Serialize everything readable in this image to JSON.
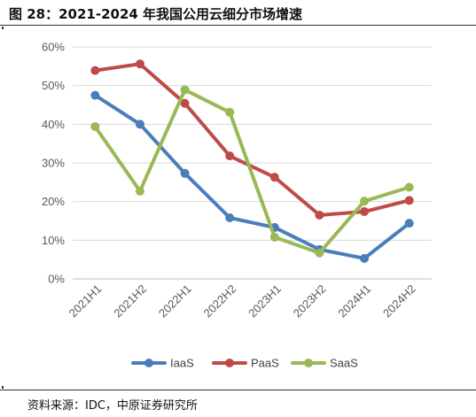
{
  "figure": {
    "title": "图 28：2021-2024 年我国公用云细分市场增速",
    "source": "资料来源：IDC，中原证券研究所"
  },
  "chart_data": {
    "type": "line",
    "title": "",
    "xlabel": "",
    "ylabel": "",
    "categories": [
      "2021H1",
      "2021H2",
      "2022H1",
      "2022H2",
      "2023H1",
      "2023H2",
      "2024H1",
      "2024H2"
    ],
    "ylim": [
      0,
      60
    ],
    "yticks": [
      0,
      10,
      20,
      30,
      40,
      50,
      60
    ],
    "ytick_labels": [
      "0%",
      "10%",
      "20%",
      "30%",
      "40%",
      "50%",
      "60%"
    ],
    "grid": true,
    "legend": "bottom",
    "series": [
      {
        "name": "IaaS",
        "color": "#4a7ebb",
        "values": [
          47.5,
          40.0,
          27.3,
          15.8,
          13.3,
          7.6,
          5.3,
          14.4
        ]
      },
      {
        "name": "PaaS",
        "color": "#be4b48",
        "values": [
          53.9,
          55.6,
          45.4,
          31.8,
          26.3,
          16.5,
          17.4,
          20.3
        ]
      },
      {
        "name": "SaaS",
        "color": "#98b954",
        "values": [
          39.4,
          22.7,
          48.9,
          43.1,
          10.8,
          6.7,
          20.1,
          23.7
        ]
      }
    ]
  }
}
